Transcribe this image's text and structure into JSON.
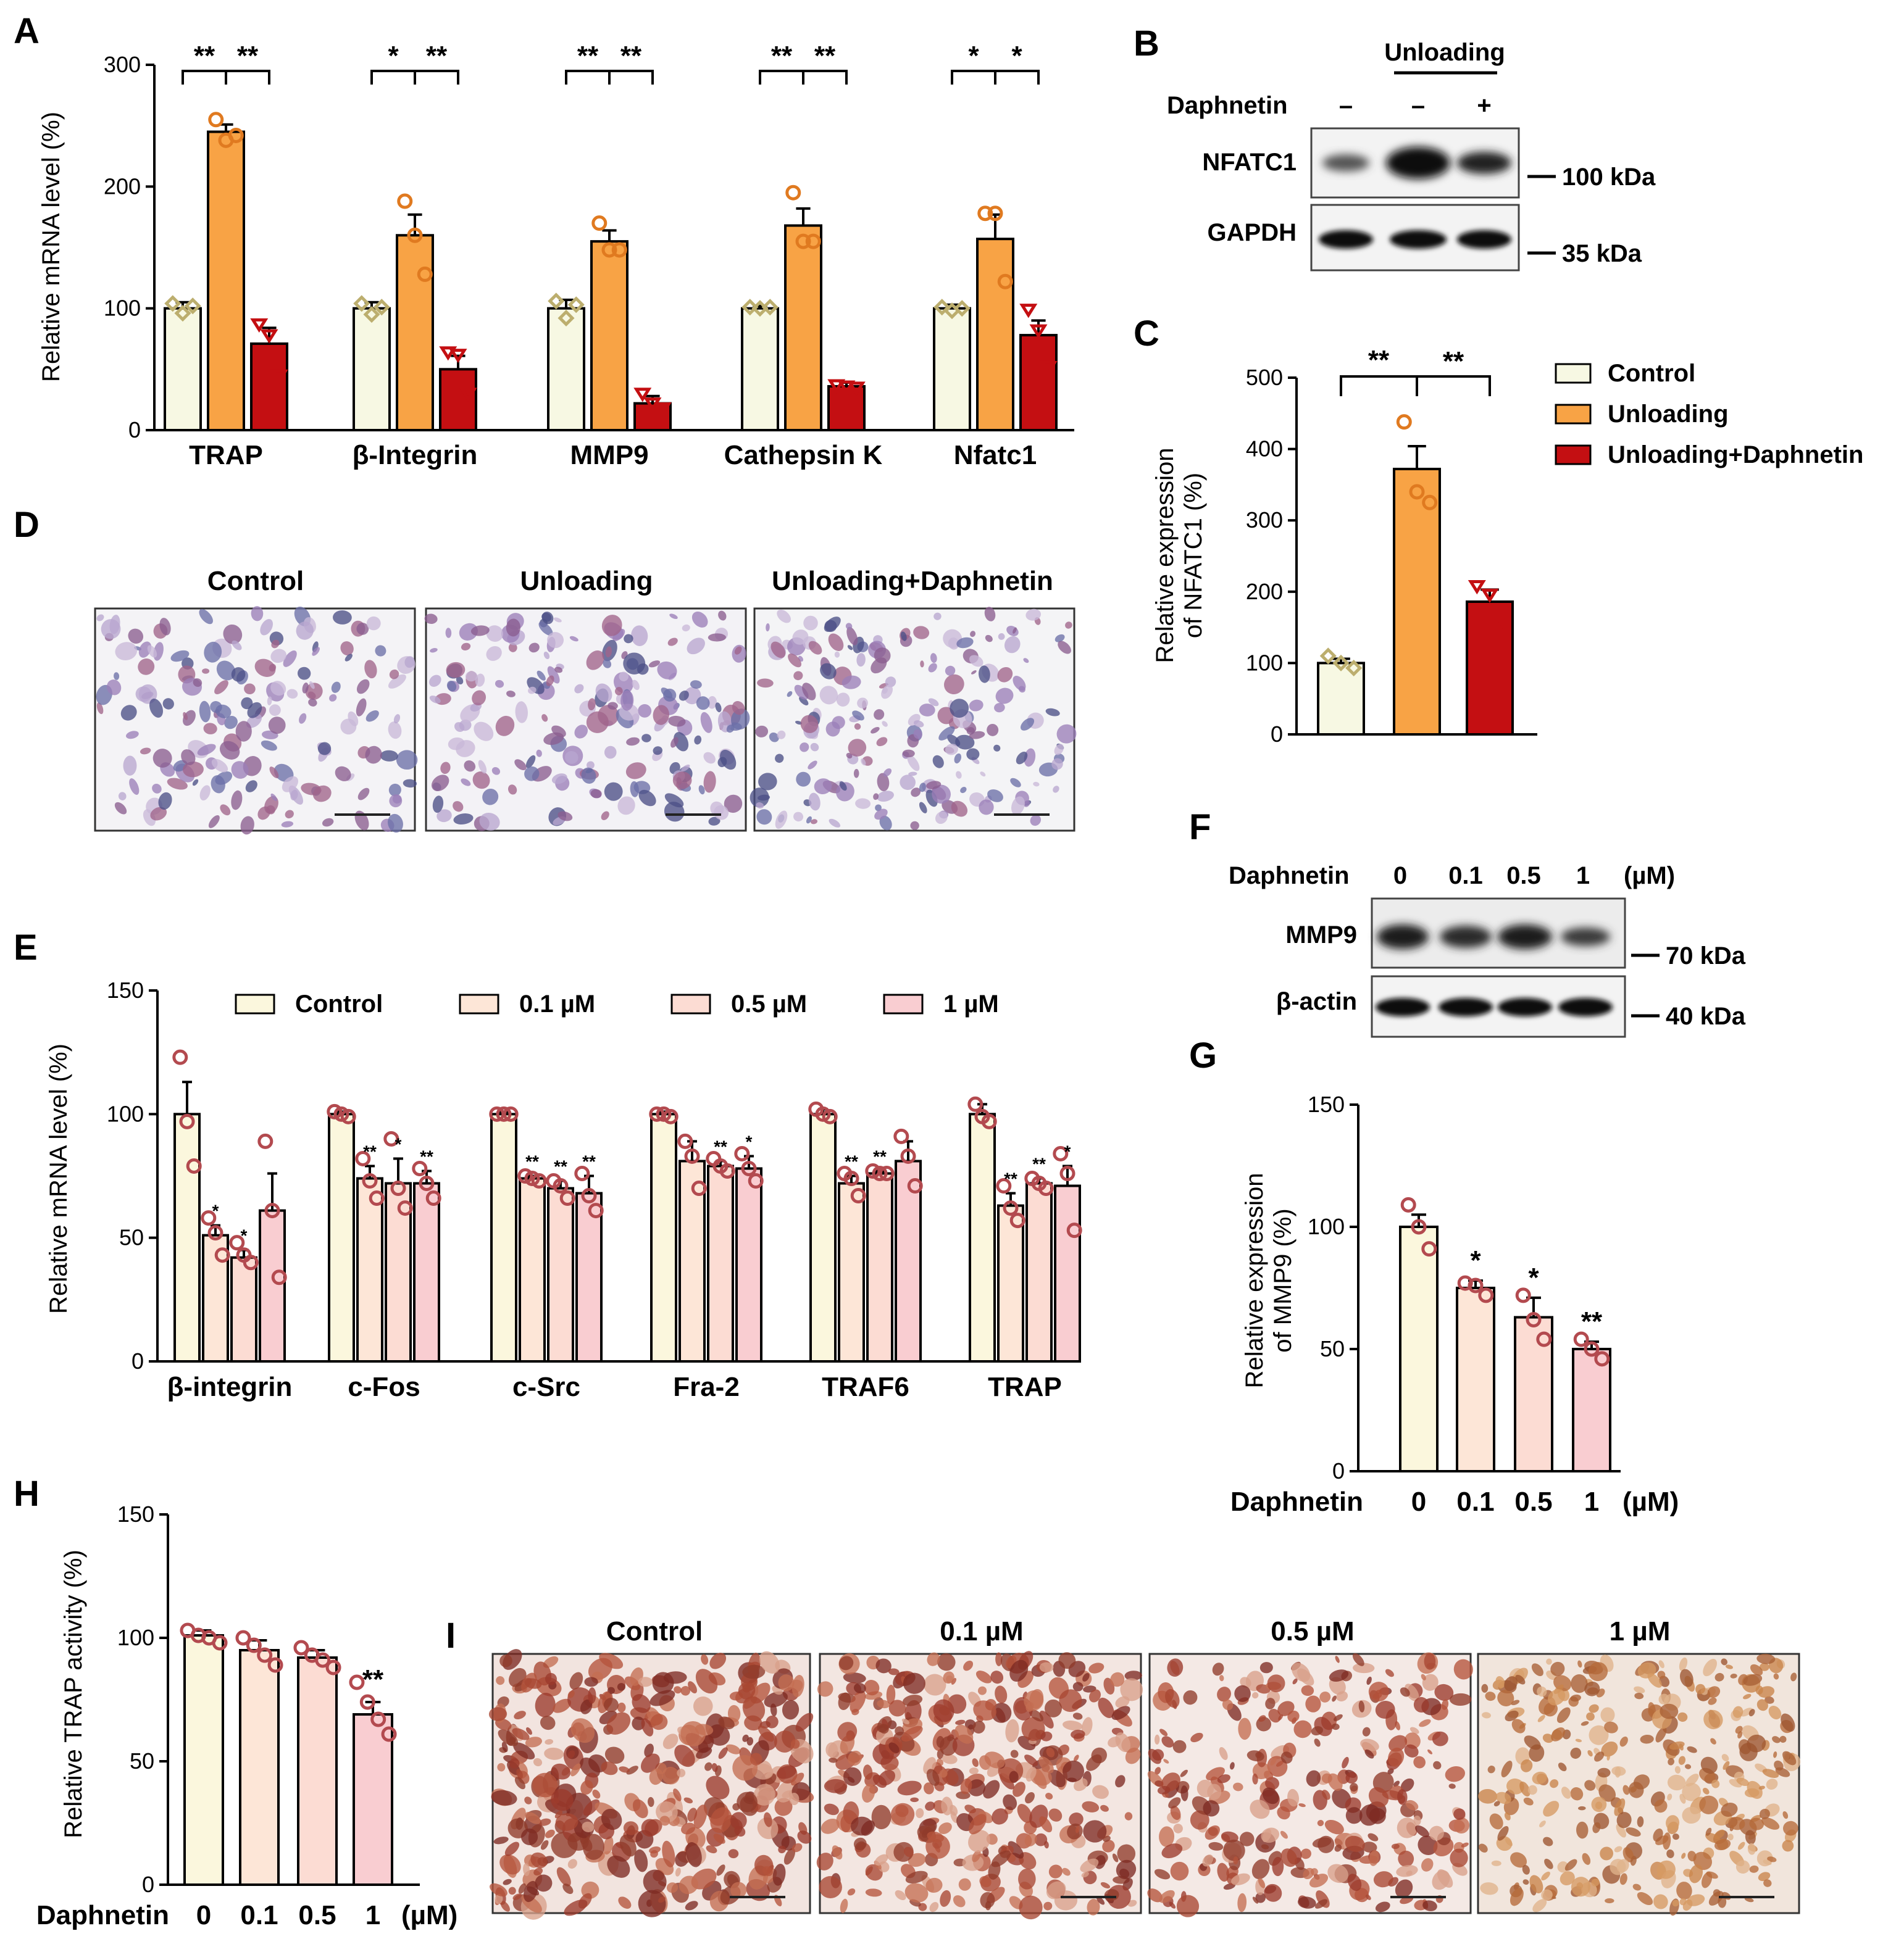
{
  "colors": {
    "control": "#f7f8e3",
    "unloading": "#f8a345",
    "unloading_daphnetin": "#c40f12",
    "pink_control": "#fbf7dd",
    "pink_01": "#fde6d7",
    "pink_05": "#fcdcd3",
    "pink_1": "#f9cdd1",
    "dot_pink": "#b34a4f",
    "dot_control": "#bcae6e"
  },
  "panel_labels": [
    "A",
    "B",
    "C",
    "D",
    "E",
    "F",
    "G",
    "H",
    "I"
  ],
  "chart_data": [
    {
      "id": "A",
      "type": "bar",
      "ylabel": "Relative mRNA level (%)",
      "yticks": [
        0,
        100,
        200,
        300
      ],
      "ylim": [
        0,
        300
      ],
      "categories": [
        "TRAP",
        "β-Integrin",
        "MMP9",
        "Cathepsin K",
        "Nfatc1"
      ],
      "series": [
        {
          "name": "Control",
          "values": [
            100,
            100,
            100,
            100,
            100
          ],
          "errors": [
            5,
            5,
            7,
            2,
            3
          ],
          "points": [
            [
              104,
              96,
              102
            ],
            [
              104,
              95,
              101
            ],
            [
              106,
              92,
              103
            ],
            [
              101,
              100,
              101
            ],
            [
              101,
              98,
              100
            ]
          ]
        },
        {
          "name": "Unloading",
          "values": [
            245,
            160,
            155,
            168,
            157
          ],
          "errors": [
            6,
            17,
            9,
            14,
            20
          ],
          "points": [
            [
              255,
              238,
              242
            ],
            [
              188,
              160,
              128
            ],
            [
              170,
              148,
              148
            ],
            [
              195,
              155,
              155
            ],
            [
              178,
              178,
              122
            ]
          ]
        },
        {
          "name": "Unloading+Daphnetin",
          "values": [
            71,
            50,
            22,
            36,
            78
          ],
          "errors": [
            13,
            11,
            6,
            3,
            12
          ],
          "points": [
            [
              87,
              78,
              45
            ],
            [
              64,
              62,
              30
            ],
            [
              30,
              22,
              18
            ],
            [
              37,
              36,
              35
            ],
            [
              99,
              82,
              52
            ]
          ]
        }
      ],
      "significance": [
        [
          "**",
          "**"
        ],
        [
          "*",
          "**"
        ],
        [
          "**",
          "**"
        ],
        [
          "**",
          "**"
        ],
        [
          "*",
          "*"
        ]
      ]
    },
    {
      "id": "C",
      "type": "bar",
      "ylabel_line1": "Relative expression",
      "ylabel_line2": "of NFATC1 (%)",
      "yticks": [
        0,
        100,
        200,
        300,
        400,
        500
      ],
      "ylim": [
        0,
        500
      ],
      "categories": [
        "Control",
        "Unloading",
        "Unloading+Daphnetin"
      ],
      "values": [
        100,
        372,
        186
      ],
      "errors": [
        6,
        32,
        17
      ],
      "points": [
        [
          110,
          100,
          93
        ],
        [
          438,
          340,
          325
        ],
        [
          208,
          196,
          160
        ]
      ],
      "significance": [
        "**",
        "**"
      ],
      "legend": [
        "Control",
        "Unloading",
        "Unloading+Daphnetin"
      ]
    },
    {
      "id": "E",
      "type": "bar",
      "ylabel": "Relative mRNA level (%)",
      "yticks": [
        0,
        50,
        100,
        150
      ],
      "ylim": [
        0,
        150
      ],
      "categories": [
        "β-integrin",
        "c-Fos",
        "c-Src",
        "Fra-2",
        "TRAF6",
        "TRAP"
      ],
      "series": [
        {
          "name": "Control",
          "values": [
            100,
            100,
            100,
            100,
            100,
            100
          ],
          "errors": [
            13,
            1,
            1,
            1,
            2,
            4
          ],
          "points": [
            [
              123,
              97,
              79
            ],
            [
              101,
              100,
              99
            ],
            [
              100,
              100,
              100
            ],
            [
              100,
              100,
              99
            ],
            [
              102,
              100,
              99
            ],
            [
              104,
              99,
              97
            ]
          ]
        },
        {
          "name": "0.1 µM",
          "values": [
            51,
            74,
            74,
            81,
            72,
            63
          ],
          "errors": [
            4,
            5,
            1,
            8,
            3,
            5
          ],
          "points": [
            [
              58,
              52,
              43
            ],
            [
              82,
              73,
              66
            ],
            [
              75,
              74,
              73
            ],
            [
              89,
              83,
              70
            ],
            [
              76,
              74,
              67
            ],
            [
              71,
              62,
              57
            ]
          ]
        },
        {
          "name": "0.5 µM",
          "values": [
            42,
            72,
            70,
            79,
            76,
            72
          ],
          "errors": [
            3,
            10,
            3,
            2,
            1,
            2
          ],
          "points": [
            [
              48,
              43,
              40
            ],
            [
              90,
              70,
              62
            ],
            [
              73,
              71,
              66
            ],
            [
              82,
              79,
              77
            ],
            [
              77,
              76,
              76
            ],
            [
              74,
              72,
              70
            ]
          ]
        },
        {
          "name": "1 µM",
          "values": [
            61,
            72,
            68,
            78,
            81,
            71
          ],
          "errors": [
            15,
            5,
            7,
            5,
            8,
            8
          ],
          "points": [
            [
              89,
              61,
              34
            ],
            [
              78,
              72,
              66
            ],
            [
              76,
              67,
              61
            ],
            [
              84,
              78,
              73
            ],
            [
              91,
              83,
              71
            ],
            [
              84,
              76,
              53
            ]
          ]
        }
      ],
      "significance": [
        [
          "",
          "*",
          "*",
          ""
        ],
        [
          "",
          "**",
          "*",
          "**"
        ],
        [
          "",
          "**",
          "**",
          "**"
        ],
        [
          "",
          "",
          "**",
          "*"
        ],
        [
          "",
          "**",
          "**",
          ""
        ],
        [
          "",
          "**",
          "**",
          "*"
        ]
      ],
      "legend": [
        "Control",
        "0.1 µM",
        "0.5 µM",
        "1 µM"
      ]
    },
    {
      "id": "G",
      "type": "bar",
      "ylabel_line1": "Relative expression",
      "ylabel_line2": "of MMP9 (%)",
      "yticks": [
        0,
        50,
        100,
        150
      ],
      "ylim": [
        0,
        150
      ],
      "xtitle": "Daphnetin",
      "categories": [
        "0",
        "0.1",
        "0.5",
        "1"
      ],
      "unit": "(µM)",
      "values": [
        100,
        75,
        63,
        50
      ],
      "errors": [
        5,
        3,
        8,
        3
      ],
      "points": [
        [
          109,
          100,
          91
        ],
        [
          77,
          76,
          72
        ],
        [
          72,
          62,
          54
        ],
        [
          54,
          50,
          46
        ]
      ],
      "significance": [
        "",
        "*",
        "*",
        "**"
      ]
    },
    {
      "id": "H",
      "type": "bar",
      "ylabel": "Relative TRAP activity (%)",
      "yticks": [
        0,
        50,
        100,
        150
      ],
      "ylim": [
        0,
        150
      ],
      "xtitle": "Daphnetin",
      "categories": [
        "0",
        "0.1",
        "0.5",
        "1"
      ],
      "unit": "(µM)",
      "values": [
        101,
        95,
        92,
        69
      ],
      "errors": [
        2,
        4,
        3,
        5
      ],
      "points": [
        [
          103,
          101,
          100,
          98
        ],
        [
          100,
          97,
          93,
          89
        ],
        [
          96,
          93,
          91,
          88
        ],
        [
          82,
          74,
          67,
          61
        ]
      ],
      "significance": [
        "",
        "",
        "",
        "**"
      ]
    }
  ],
  "blot_B": {
    "header": "Unloading",
    "row_label": "Daphnetin",
    "lane_signs": [
      "–",
      "–",
      "+"
    ],
    "bands": [
      "NFATC1",
      "GAPDH"
    ],
    "markers": [
      "100 kDa",
      "35 kDa"
    ]
  },
  "blot_F": {
    "row_label": "Daphnetin",
    "lanes": [
      "0",
      "0.1",
      "0.5",
      "1"
    ],
    "unit": "(µM)",
    "bands": [
      "MMP9",
      "β-actin"
    ],
    "markers": [
      "70 kDa",
      "40 kDa"
    ]
  },
  "images_D": {
    "titles": [
      "Control",
      "Unloading",
      "Unloading+Daphnetin"
    ]
  },
  "images_I": {
    "titles": [
      "Control",
      "0.1 µM",
      "0.5 µM",
      "1 µM"
    ]
  }
}
